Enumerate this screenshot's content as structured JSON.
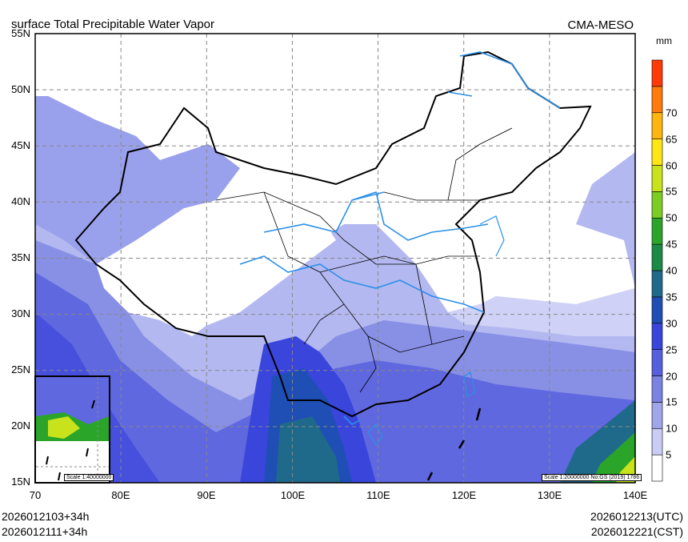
{
  "header": {
    "title": "surface Total Precipitable Water Vapor",
    "model": "CMA-MESO"
  },
  "axes": {
    "y_labels": [
      "55N",
      "50N",
      "45N",
      "40N",
      "35N",
      "30N",
      "25N",
      "20N",
      "15N"
    ],
    "x_labels": [
      "70",
      "80E",
      "90E",
      "100E",
      "110E",
      "120E",
      "130E",
      "140E"
    ],
    "lon_range": [
      70,
      140
    ],
    "lat_range": [
      15,
      55
    ]
  },
  "colorbar": {
    "unit": "mm",
    "labels": [
      "5",
      "10",
      "15",
      "20",
      "25",
      "30",
      "35",
      "40",
      "45",
      "50",
      "55",
      "60",
      "65",
      "70"
    ],
    "colors": [
      "#ffffff",
      "#c9cdf5",
      "#9fa6ea",
      "#7a83e2",
      "#5660dd",
      "#3a45dc",
      "#1f4fb5",
      "#1f6a8a",
      "#1b8a46",
      "#2aa52a",
      "#7ccc22",
      "#c8e21b",
      "#ffe514",
      "#ffb50f",
      "#ff7b0b",
      "#ff3a08"
    ]
  },
  "inset": {
    "scale": "Scale 1:40000000"
  },
  "main_scale": "Scale 1:20000000 No:GS (2019) 1786",
  "footer": {
    "left_line1": "2026012103+34h",
    "left_line2": "2026012111+34h",
    "right_line1": "2026012213(UTC)",
    "right_line2": "2026012221(CST)"
  },
  "colors": {
    "river": "#2a90e8",
    "border": "#000000",
    "grid": "#888888"
  }
}
